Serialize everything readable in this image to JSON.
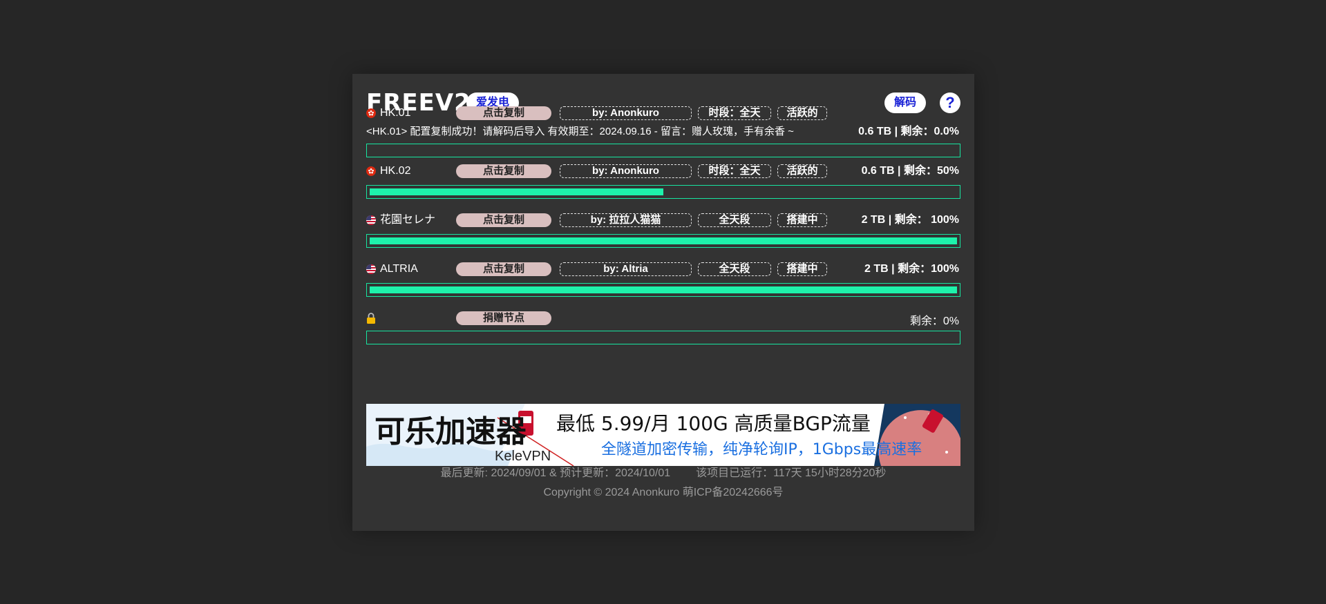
{
  "header": {
    "title": "FREEV2",
    "sponsor_label": "爱发电",
    "decode_label": "解码",
    "help_label": "?"
  },
  "nodes": [
    {
      "flag": "hk-flag-icon",
      "name": "HK.01",
      "copy_label": "点击复制",
      "by": "by: Anonkuro",
      "time": "时段：全天",
      "state": "活跃的",
      "message": "<HK.01> 配置复制成功！请解码后导入 有效期至：2024.09.16 - 留言：赠人玫瑰，手有余香 ~",
      "traffic": "0.6 TB | 剩余：0.0%",
      "remaining": 0
    },
    {
      "flag": "hk-flag-icon",
      "name": "HK.02",
      "copy_label": "点击复制",
      "by": "by: Anonkuro",
      "time": "时段：全天",
      "state": "活跃的",
      "traffic": "0.6 TB | 剩余：50%",
      "remaining": 50
    },
    {
      "flag": "us-flag-icon",
      "name": "花園セレナ",
      "copy_label": "点击复制",
      "by": "by: 拉拉人猫猫",
      "time": "全天段",
      "state": "搭建中",
      "traffic": "2 TB | 剩余：  100%",
      "remaining": 100
    },
    {
      "flag": "us-flag-icon",
      "name": "ALTRIA",
      "copy_label": "点击复制",
      "by": "by: Altria",
      "time": "全天段",
      "state": "搭建中",
      "traffic": "2 TB | 剩余：100%",
      "remaining": 100
    },
    {
      "flag": "lock-icon",
      "copy_label": "捐赠节点",
      "traffic": "剩余：0%",
      "remaining": 0
    }
  ],
  "banner": {
    "brand_cn": "可乐加速器",
    "brand_en": "KeleVPN",
    "headline": "最低 5.99/月 100G 高质量BGP流量",
    "subline": "全隧道加密传输，纯净轮询IP，1Gbps最高速率"
  },
  "footer": {
    "updates": "最后更新: 2024/09/01  &  预计更新：2024/10/01",
    "uptime": "该项目已运行：117天  15小时28分20秒",
    "copyright": "Copyright © 2024 Anonkuro 萌ICP备20242666号"
  },
  "colors": {
    "background": "#262626",
    "card": "#333333",
    "progress": "#1ef2ab",
    "copy_button": "#d9bfbf",
    "accent_blue": "#1a22d6"
  }
}
